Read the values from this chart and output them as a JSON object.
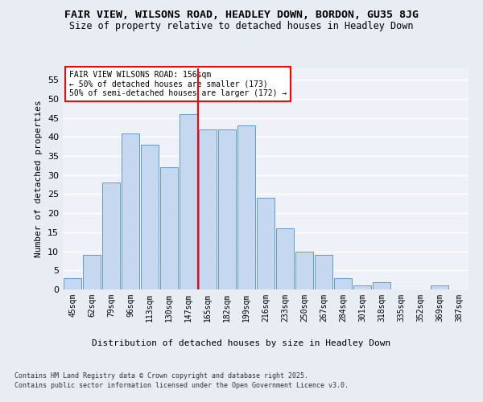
{
  "title": "FAIR VIEW, WILSONS ROAD, HEADLEY DOWN, BORDON, GU35 8JG",
  "subtitle": "Size of property relative to detached houses in Headley Down",
  "xlabel": "Distribution of detached houses by size in Headley Down",
  "ylabel": "Number of detached properties",
  "categories": [
    "45sqm",
    "62sqm",
    "79sqm",
    "96sqm",
    "113sqm",
    "130sqm",
    "147sqm",
    "165sqm",
    "182sqm",
    "199sqm",
    "216sqm",
    "233sqm",
    "250sqm",
    "267sqm",
    "284sqm",
    "301sqm",
    "318sqm",
    "335sqm",
    "352sqm",
    "369sqm",
    "387sqm"
  ],
  "values": [
    3,
    9,
    28,
    41,
    38,
    32,
    46,
    42,
    42,
    43,
    24,
    16,
    10,
    9,
    3,
    1,
    2,
    0,
    0,
    1,
    0
  ],
  "bar_color": "#c5d8f0",
  "bar_edge_color": "#5b9bd5",
  "ylim": [
    0,
    58
  ],
  "yticks": [
    0,
    5,
    10,
    15,
    20,
    25,
    30,
    35,
    40,
    45,
    50,
    55
  ],
  "annotation_title": "FAIR VIEW WILSONS ROAD: 156sqm",
  "annotation_line1": "← 50% of detached houses are smaller (173)",
  "annotation_line2": "50% of semi-detached houses are larger (172) →",
  "vline_index": 6.5,
  "bg_color": "#e8edf4",
  "plot_bg_color": "#eef2f8",
  "grid_color": "#ffffff",
  "footer_line1": "Contains HM Land Registry data © Crown copyright and database right 2025.",
  "footer_line2": "Contains public sector information licensed under the Open Government Licence v3.0."
}
